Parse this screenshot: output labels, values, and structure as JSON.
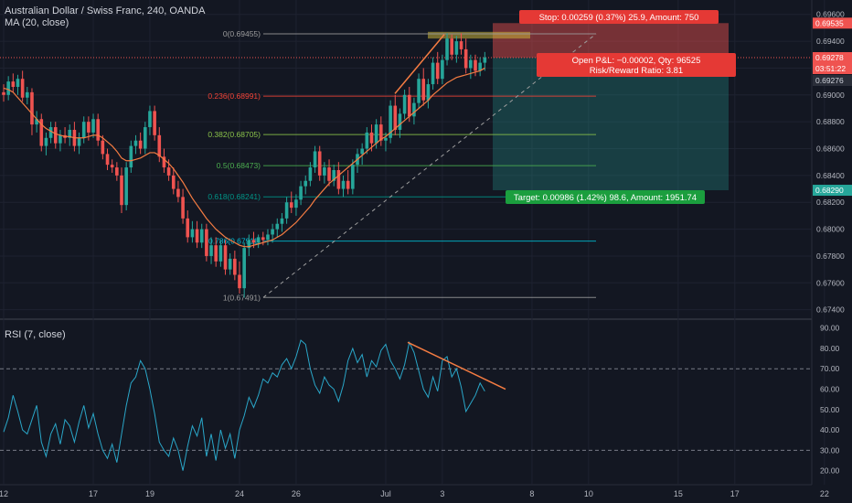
{
  "header": {
    "symbol_title": "Australian Dollar / Swiss Franc, 240, OANDA",
    "ma_label": "MA (20, close)",
    "rsi_label": "RSI (7, close)"
  },
  "colors": {
    "background": "#131722",
    "up": "#26a69a",
    "down": "#ef5350",
    "ma": "#f57c42",
    "rsi": "#2aa7c9",
    "trendline": "#f57c42",
    "fib_0": "#9e9e9e",
    "fib_236": "#f44336",
    "fib_382": "#8bc34a",
    "fib_5": "#4caf50",
    "fib_618": "#009688",
    "fib_786": "#00bcd4",
    "fib_1": "#9e9e9e",
    "stop_zone": "#ef5350",
    "target_zone": "#26a69a",
    "entry_label": "#d32f2f"
  },
  "chart_data": [
    {
      "type": "candlestick",
      "title": "Australian Dollar / Swiss Franc, 240, OANDA",
      "indicator": "MA (20, close)",
      "ylim": [
        0.6735,
        0.6968
      ],
      "yticks": [
        "0.69600",
        "0.69400",
        "0.69200",
        "0.69000",
        "0.68800",
        "0.68600",
        "0.68400",
        "0.68200",
        "0.68000",
        "0.67800",
        "0.67600",
        "0.67400"
      ],
      "xticks": [
        {
          "label": "12",
          "idx": 0
        },
        {
          "label": "17",
          "idx": 19
        },
        {
          "label": "19",
          "idx": 31
        },
        {
          "label": "24",
          "idx": 50
        },
        {
          "label": "26",
          "idx": 62
        },
        {
          "label": "Jul",
          "idx": 81
        },
        {
          "label": "3",
          "idx": 93
        },
        {
          "label": "8",
          "idx": 112
        },
        {
          "label": "10",
          "idx": 124
        },
        {
          "label": "15",
          "idx": 143
        },
        {
          "label": "17",
          "idx": 155
        },
        {
          "label": "22",
          "idx": 174
        }
      ],
      "candles": [
        [
          0.6902,
          0.6908,
          0.6895,
          0.69
        ],
        [
          0.69,
          0.6914,
          0.6896,
          0.691
        ],
        [
          0.691,
          0.6916,
          0.6902,
          0.6906
        ],
        [
          0.6906,
          0.6915,
          0.69,
          0.6912
        ],
        [
          0.6912,
          0.6918,
          0.6895,
          0.6898
        ],
        [
          0.6898,
          0.6906,
          0.6893,
          0.6902
        ],
        [
          0.6902,
          0.6905,
          0.687,
          0.6878
        ],
        [
          0.6878,
          0.6888,
          0.6872,
          0.6882
        ],
        [
          0.6882,
          0.6886,
          0.6858,
          0.6862
        ],
        [
          0.6862,
          0.6872,
          0.6855,
          0.6868
        ],
        [
          0.6868,
          0.688,
          0.6864,
          0.6876
        ],
        [
          0.6876,
          0.688,
          0.686,
          0.6864
        ],
        [
          0.6864,
          0.6874,
          0.6858,
          0.687
        ],
        [
          0.687,
          0.6876,
          0.6864,
          0.6868
        ],
        [
          0.6868,
          0.6878,
          0.6862,
          0.6874
        ],
        [
          0.6874,
          0.688,
          0.6858,
          0.6862
        ],
        [
          0.6862,
          0.6872,
          0.6856,
          0.6868
        ],
        [
          0.6868,
          0.6884,
          0.6864,
          0.688
        ],
        [
          0.688,
          0.6884,
          0.6866,
          0.6872
        ],
        [
          0.6872,
          0.6886,
          0.6868,
          0.6882
        ],
        [
          0.6882,
          0.6886,
          0.6862,
          0.6866
        ],
        [
          0.6866,
          0.687,
          0.6852,
          0.6856
        ],
        [
          0.6856,
          0.686,
          0.6844,
          0.6848
        ],
        [
          0.6848,
          0.6852,
          0.6842,
          0.6846
        ],
        [
          0.6846,
          0.685,
          0.6836,
          0.684
        ],
        [
          0.684,
          0.6846,
          0.6812,
          0.6818
        ],
        [
          0.6818,
          0.685,
          0.6814,
          0.6846
        ],
        [
          0.6846,
          0.6866,
          0.6842,
          0.6862
        ],
        [
          0.6862,
          0.687,
          0.6856,
          0.6866
        ],
        [
          0.6866,
          0.6872,
          0.6856,
          0.686
        ],
        [
          0.686,
          0.688,
          0.6856,
          0.6876
        ],
        [
          0.6876,
          0.6892,
          0.687,
          0.6888
        ],
        [
          0.6888,
          0.6892,
          0.6866,
          0.687
        ],
        [
          0.687,
          0.6876,
          0.685,
          0.6854
        ],
        [
          0.6854,
          0.686,
          0.6842,
          0.6846
        ],
        [
          0.6846,
          0.6852,
          0.6836,
          0.684
        ],
        [
          0.684,
          0.6846,
          0.6826,
          0.683
        ],
        [
          0.683,
          0.6836,
          0.682,
          0.6824
        ],
        [
          0.6824,
          0.683,
          0.6804,
          0.6808
        ],
        [
          0.6808,
          0.6814,
          0.679,
          0.6794
        ],
        [
          0.6794,
          0.6806,
          0.679,
          0.68
        ],
        [
          0.68,
          0.6806,
          0.6786,
          0.679
        ],
        [
          0.679,
          0.6804,
          0.6786,
          0.68
        ],
        [
          0.68,
          0.6804,
          0.6776,
          0.678
        ],
        [
          0.678,
          0.6794,
          0.6774,
          0.6788
        ],
        [
          0.6788,
          0.6794,
          0.6772,
          0.6776
        ],
        [
          0.6776,
          0.6792,
          0.6772,
          0.6788
        ],
        [
          0.6788,
          0.6792,
          0.6766,
          0.677
        ],
        [
          0.677,
          0.6782,
          0.6766,
          0.6778
        ],
        [
          0.6778,
          0.6784,
          0.6762,
          0.6766
        ],
        [
          0.6766,
          0.6776,
          0.6752,
          0.6756
        ],
        [
          0.6756,
          0.679,
          0.6749,
          0.6786
        ],
        [
          0.6786,
          0.6796,
          0.678,
          0.6792
        ],
        [
          0.6792,
          0.6798,
          0.6786,
          0.679
        ],
        [
          0.679,
          0.6796,
          0.6786,
          0.6794
        ],
        [
          0.6794,
          0.6798,
          0.6788,
          0.6792
        ],
        [
          0.6792,
          0.68,
          0.6788,
          0.6796
        ],
        [
          0.6796,
          0.6804,
          0.679,
          0.68
        ],
        [
          0.68,
          0.6808,
          0.6794,
          0.6804
        ],
        [
          0.6804,
          0.6812,
          0.6798,
          0.6808
        ],
        [
          0.6808,
          0.6824,
          0.6804,
          0.682
        ],
        [
          0.682,
          0.6828,
          0.6812,
          0.6816
        ],
        [
          0.6816,
          0.6826,
          0.681,
          0.6822
        ],
        [
          0.6822,
          0.6836,
          0.6818,
          0.6832
        ],
        [
          0.6832,
          0.684,
          0.6826,
          0.6836
        ],
        [
          0.6836,
          0.685,
          0.6832,
          0.6846
        ],
        [
          0.6846,
          0.6862,
          0.6842,
          0.6858
        ],
        [
          0.6858,
          0.6862,
          0.6836,
          0.684
        ],
        [
          0.684,
          0.685,
          0.6834,
          0.6846
        ],
        [
          0.6846,
          0.6852,
          0.6832,
          0.6836
        ],
        [
          0.6836,
          0.6848,
          0.6832,
          0.6844
        ],
        [
          0.6844,
          0.685,
          0.6826,
          0.683
        ],
        [
          0.683,
          0.684,
          0.6824,
          0.6836
        ],
        [
          0.6836,
          0.6844,
          0.6826,
          0.683
        ],
        [
          0.683,
          0.6852,
          0.6826,
          0.6848
        ],
        [
          0.6848,
          0.686,
          0.6842,
          0.6856
        ],
        [
          0.6856,
          0.6864,
          0.6848,
          0.686
        ],
        [
          0.686,
          0.6876,
          0.6856,
          0.6872
        ],
        [
          0.6872,
          0.6878,
          0.6858,
          0.6864
        ],
        [
          0.6864,
          0.6882,
          0.686,
          0.6878
        ],
        [
          0.6878,
          0.6884,
          0.6862,
          0.6866
        ],
        [
          0.6866,
          0.6872,
          0.6858,
          0.6868
        ],
        [
          0.6868,
          0.6896,
          0.6864,
          0.6892
        ],
        [
          0.6892,
          0.69,
          0.687,
          0.6874
        ],
        [
          0.6874,
          0.689,
          0.6868,
          0.6886
        ],
        [
          0.6886,
          0.6904,
          0.6882,
          0.69
        ],
        [
          0.69,
          0.6906,
          0.688,
          0.6884
        ],
        [
          0.6884,
          0.6898,
          0.6878,
          0.6894
        ],
        [
          0.6894,
          0.6916,
          0.689,
          0.6912
        ],
        [
          0.6912,
          0.692,
          0.6892,
          0.6896
        ],
        [
          0.6896,
          0.6912,
          0.689,
          0.6908
        ],
        [
          0.6908,
          0.6928,
          0.6904,
          0.6924
        ],
        [
          0.6924,
          0.6932,
          0.6908,
          0.6912
        ],
        [
          0.6912,
          0.693,
          0.6908,
          0.6926
        ],
        [
          0.6926,
          0.6946,
          0.6922,
          0.6942
        ],
        [
          0.6942,
          0.6945,
          0.6926,
          0.693
        ],
        [
          0.693,
          0.6944,
          0.6924,
          0.694
        ],
        [
          0.694,
          0.6946,
          0.693,
          0.6934
        ],
        [
          0.6934,
          0.6942,
          0.6916,
          0.692
        ],
        [
          0.692,
          0.693,
          0.6912,
          0.6926
        ],
        [
          0.6926,
          0.693,
          0.6914,
          0.6918
        ],
        [
          0.6918,
          0.6928,
          0.6914,
          0.6924
        ],
        [
          0.6924,
          0.6932,
          0.6918,
          0.6928
        ]
      ],
      "ma": [
        0.6905,
        0.6904,
        0.6902,
        0.6898,
        0.6894,
        0.689,
        0.6886,
        0.6882,
        0.6878,
        0.6875,
        0.6873,
        0.6871,
        0.687,
        0.6869,
        0.6869,
        0.6868,
        0.6868,
        0.6868,
        0.6869,
        0.687,
        0.687,
        0.6868,
        0.6865,
        0.6862,
        0.6858,
        0.6853,
        0.6851,
        0.6851,
        0.6852,
        0.6853,
        0.6855,
        0.6857,
        0.6857,
        0.6855,
        0.6852,
        0.6849,
        0.6845,
        0.684,
        0.6835,
        0.6829,
        0.6823,
        0.6818,
        0.6813,
        0.6808,
        0.6804,
        0.68,
        0.6797,
        0.6794,
        0.6792,
        0.679,
        0.6788,
        0.6787,
        0.6787,
        0.6788,
        0.6789,
        0.679,
        0.6791,
        0.6792,
        0.6794,
        0.6796,
        0.6799,
        0.6802,
        0.6805,
        0.6809,
        0.6813,
        0.6817,
        0.6822,
        0.6826,
        0.683,
        0.6834,
        0.6837,
        0.684,
        0.6843,
        0.6846,
        0.6849,
        0.6852,
        0.6855,
        0.6858,
        0.6861,
        0.6864,
        0.6867,
        0.6869,
        0.6872,
        0.6875,
        0.6878,
        0.6881,
        0.6884,
        0.6887,
        0.689,
        0.6893,
        0.6896,
        0.69,
        0.6903,
        0.6906,
        0.6909,
        0.6911,
        0.6913,
        0.6914,
        0.6915,
        0.6916,
        0.6917,
        0.6918,
        0.692
      ],
      "current_price": "0.69278",
      "countdown": "03:51:22",
      "bid_price": "0.69276",
      "fib_levels": [
        {
          "ratio": "0",
          "price": 0.69455,
          "label": "0(0.69455)"
        },
        {
          "ratio": "0.236",
          "price": 0.68991,
          "label": "0.236(0.68991)"
        },
        {
          "ratio": "0.382",
          "price": 0.68705,
          "label": "0.382(0.68705)"
        },
        {
          "ratio": "0.5",
          "price": 0.68473,
          "label": "0.5(0.68473)"
        },
        {
          "ratio": "0.618",
          "price": 0.68241,
          "label": "0.618(0.68241)"
        },
        {
          "ratio": "0.786",
          "price": 0.67911,
          "label": "0.786(0.67911)"
        },
        {
          "ratio": "1",
          "price": 0.67491,
          "label": "1(0.67491)"
        }
      ],
      "position": {
        "entry": 0.69278,
        "stop": 0.69535,
        "target": 0.6829,
        "stop_label": "Stop: 0.00259 (0.37%) 25.9, Amount: 750",
        "pnl_label": "Open P&L: −0.00002, Qty: 96525",
        "rr_label": "Risk/Reward Ratio: 3.81",
        "target_label": "Target: 0.00986 (1.42%) 98.6, Amount: 1951.74",
        "stop_price_tag": "0.69535",
        "target_price_tag": "0.68290"
      }
    },
    {
      "type": "line",
      "title": "RSI (7, close)",
      "ylim": [
        14,
        93
      ],
      "yticks": [
        "90.00",
        "80.00",
        "70.00",
        "60.00",
        "50.00",
        "40.00",
        "30.00",
        "20.00"
      ],
      "bands": [
        70,
        30
      ],
      "values": [
        39,
        46,
        57,
        49,
        40,
        38,
        45,
        52,
        34,
        27,
        38,
        43,
        33,
        45,
        42,
        34,
        44,
        52,
        41,
        48,
        38,
        30,
        26,
        33,
        24,
        38,
        52,
        63,
        66,
        74,
        70,
        60,
        48,
        34,
        30,
        27,
        36,
        30,
        20,
        32,
        42,
        37,
        46,
        27,
        38,
        25,
        40,
        31,
        38,
        26,
        40,
        47,
        56,
        51,
        57,
        65,
        63,
        68,
        66,
        72,
        75,
        70,
        76,
        84,
        82,
        70,
        62,
        58,
        66,
        62,
        60,
        54,
        62,
        74,
        80,
        73,
        77,
        66,
        74,
        71,
        79,
        82,
        74,
        70,
        65,
        72,
        83,
        78,
        69,
        60,
        56,
        66,
        59,
        74,
        76,
        66,
        70,
        61,
        49,
        53,
        57,
        63,
        59
      ],
      "trendline_label": ""
    }
  ]
}
